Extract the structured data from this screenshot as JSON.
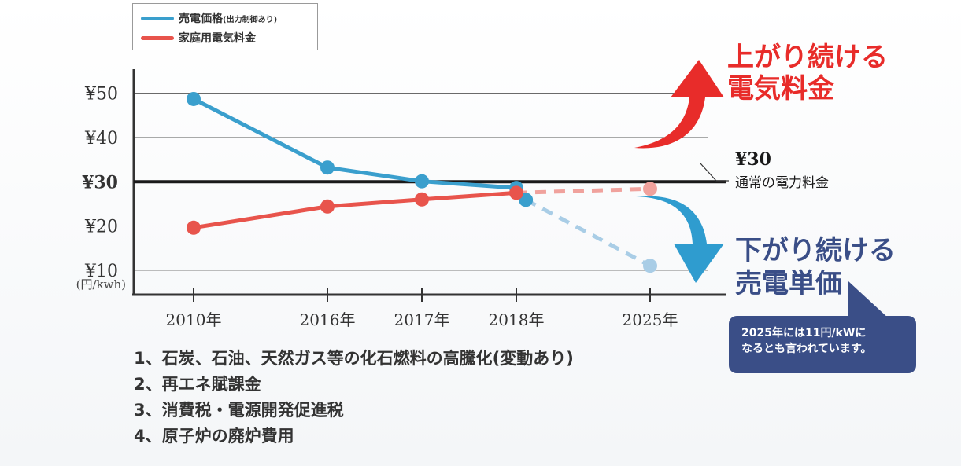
{
  "legend": {
    "items": [
      {
        "label": "売電価格",
        "note": "(出力制御あり)",
        "color": "#3a9fcd"
      },
      {
        "label": "家庭用電気料金",
        "note": "",
        "color": "#e8544c"
      }
    ]
  },
  "chart_data": {
    "type": "line",
    "x": [
      "2010年",
      "2016年",
      "2017年",
      "2018年",
      "2025年"
    ],
    "y_ticks": [
      "¥10",
      "¥20",
      "¥30",
      "¥40",
      "¥50"
    ],
    "y_unit": "(円/kwh)",
    "ylim": [
      5,
      55
    ],
    "series": [
      {
        "name": "売電価格(出力制御あり)",
        "color": "#3a9fcd",
        "points": [
          [
            2010,
            48.7
          ],
          [
            2016,
            33.2
          ],
          [
            2017,
            30.1
          ],
          [
            2018,
            28.6
          ],
          [
            2018.5,
            25.9
          ]
        ],
        "projection": [
          [
            2018.5,
            25.9
          ],
          [
            2025,
            11
          ]
        ]
      },
      {
        "name": "家庭用電気料金",
        "color": "#e8544c",
        "points": [
          [
            2010,
            19.6
          ],
          [
            2016,
            24.4
          ],
          [
            2017,
            26.0
          ],
          [
            2018,
            27.5
          ]
        ],
        "projection": [
          [
            2018,
            27.5
          ],
          [
            2025,
            28.4
          ]
        ]
      }
    ],
    "reference_line": {
      "value": 30,
      "label": "¥30",
      "sublabel": "通常の電力料金"
    },
    "annotations": {
      "rising": [
        "上がり続ける",
        "電気料金"
      ],
      "falling": [
        "下がり続ける",
        "売電単価"
      ],
      "rising_color": "#e82c2a",
      "falling_color": "#3a4e87",
      "arrow_blue": "#2f9ccf"
    }
  },
  "bubble": {
    "lines": [
      "2025年には11円/kWに",
      "なるとも言われています。"
    ]
  },
  "footnotes": [
    "1、石炭、石油、天然ガス等の化石燃料の高騰化(変動あり)",
    "2、再エネ賦課金",
    "3、消費税・電源開発促進税",
    "4、原子炉の廃炉費用"
  ]
}
